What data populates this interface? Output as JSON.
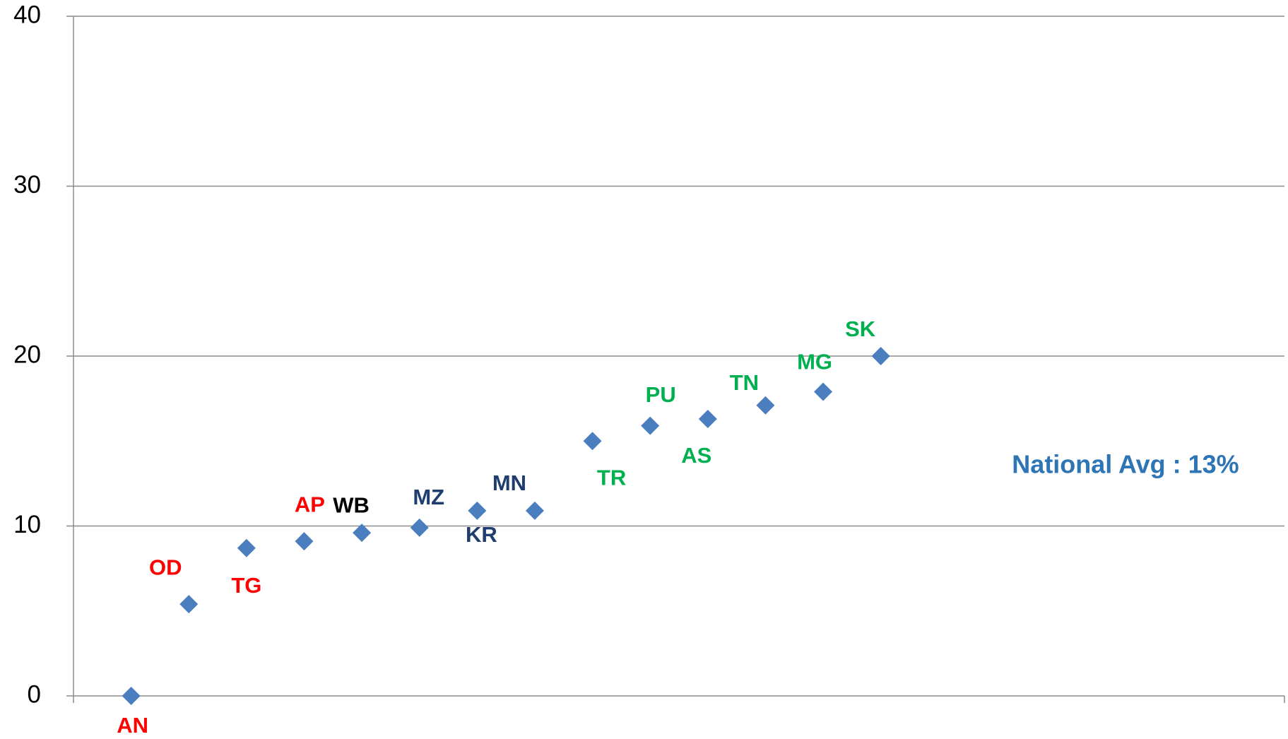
{
  "chart_data": {
    "type": "scatter",
    "labels": [
      "AN",
      "OD",
      "TG",
      "AP",
      "WB",
      "MZ",
      "KR",
      "MN",
      "TR",
      "PU",
      "AS",
      "TN",
      "MG",
      "SK"
    ],
    "label_colors": [
      "#ff0000",
      "#ff0000",
      "#ff0000",
      "#ff0000",
      "#000000",
      "#1f3d6e",
      "#1f3d6e",
      "#1f3d6e",
      "#00b050",
      "#00b050",
      "#00b050",
      "#00b050",
      "#00b050",
      "#00b050"
    ],
    "x": [
      1,
      2,
      3,
      4,
      5,
      6,
      7,
      8,
      9,
      10,
      11,
      12,
      13,
      14
    ],
    "values": [
      0,
      5.4,
      8.7,
      9.1,
      9.6,
      9.9,
      10.9,
      10.9,
      15.0,
      15.9,
      16.3,
      17.1,
      17.9,
      20.0
    ],
    "color": "#4a7ebf",
    "xlim": [
      0,
      21
    ],
    "ylim": [
      0,
      40
    ],
    "yticks": [
      0,
      10,
      20,
      30,
      40
    ],
    "grid": true,
    "annotation": "National Avg : 13%",
    "annotation_color": "#2e75b6"
  }
}
